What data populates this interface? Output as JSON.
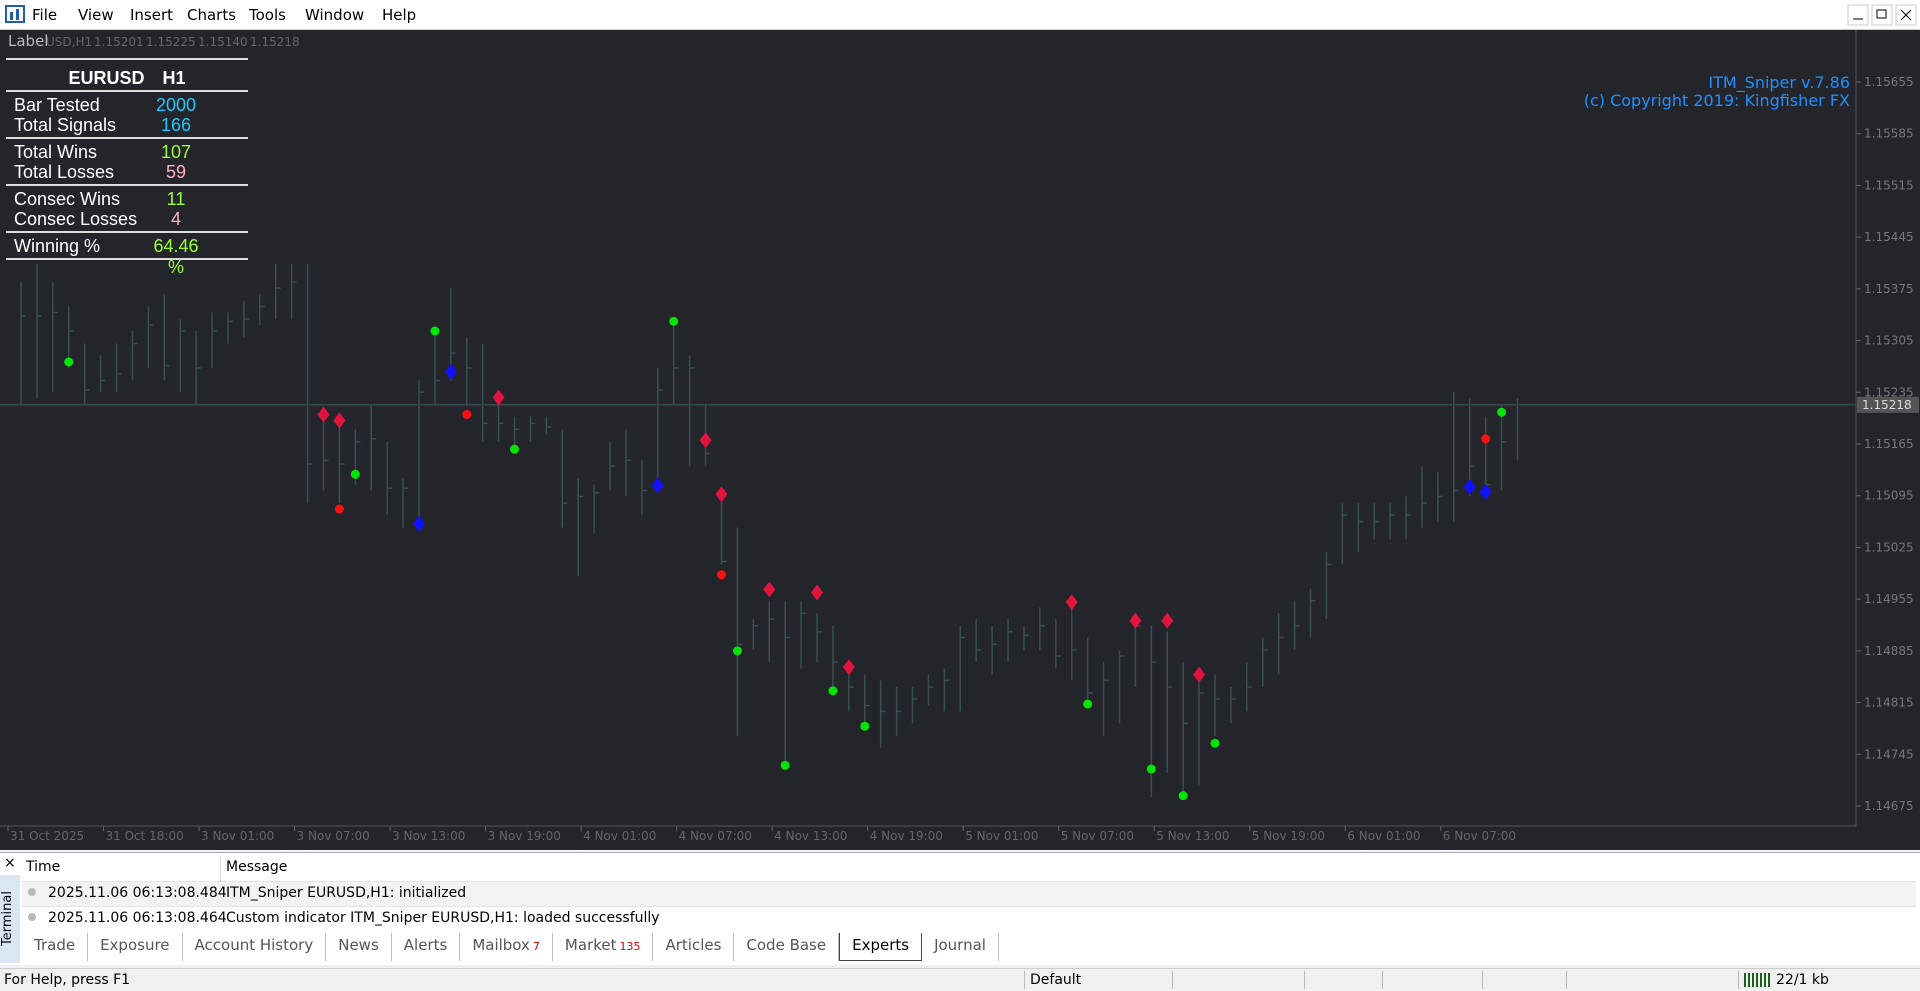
{
  "menu": [
    "File",
    "View",
    "Insert",
    "Charts",
    "Tools",
    "Window",
    "Help"
  ],
  "ohlc_header": {
    "label": "Label",
    "symbol": "USD,H1",
    "values": [
      1.15201,
      1.15225,
      {
        "value": 1.1514,
        "label": "1.15140"
      },
      1.15218
    ]
  },
  "stats_panel": {
    "symbol": "EURUSD",
    "timeframe": "H1",
    "groups": [
      [
        {
          "label": "Bar Tested",
          "value": 2000,
          "color": "#1ec8ff"
        },
        {
          "label": "Total Signals",
          "value": 166,
          "color": "#1ec8ff"
        }
      ],
      [
        {
          "label": "Total Wins",
          "value": 107,
          "color": "#9aff32"
        },
        {
          "label": "Total Losses",
          "value": 59,
          "color": "#ffb0c0"
        }
      ],
      [
        {
          "label": "Consec Wins",
          "value": 11,
          "color": "#9aff32"
        },
        {
          "label": "Consec Losses",
          "value": 4,
          "color": "#ffb0c0"
        }
      ],
      [
        {
          "label": "Winning %",
          "value": 64.46,
          "value_label": "64.46 %",
          "color": "#9aff32"
        }
      ]
    ]
  },
  "indicator": {
    "name": "ITM_Sniper v.7.86",
    "copyright": "(c) Copyright 2019: Kingfisher FX",
    "color": "#1e90ff"
  },
  "price_axis": {
    "ticks": [
      1.15655,
      1.15585,
      1.15515,
      1.15445,
      1.15375,
      1.15305,
      1.15235,
      1.15165,
      1.15095,
      1.15025,
      1.14955,
      1.14885,
      1.14815,
      1.14745,
      1.14675
    ],
    "current": 1.15218
  },
  "time_axis": {
    "labels": [
      "31 Oct 2025",
      "31 Oct 18:00",
      "3 Nov 01:00",
      "3 Nov 07:00",
      "3 Nov 13:00",
      "3 Nov 19:00",
      "4 Nov 01:00",
      "4 Nov 07:00",
      "4 Nov 13:00",
      "4 Nov 19:00",
      "5 Nov 01:00",
      "5 Nov 07:00",
      "5 Nov 13:00",
      "5 Nov 19:00",
      "6 Nov 01:00",
      "6 Nov 07:00"
    ]
  },
  "bars": {
    "color": "#35504f",
    "high": [
      1.15384,
      1.15409,
      1.15384,
      1.15351,
      1.15301,
      1.15285,
      1.15301,
      1.15318,
      1.15351,
      1.15368,
      1.15334,
      1.15318,
      1.15343,
      1.15343,
      1.15359,
      1.15368,
      1.15409,
      1.15409,
      1.15409,
      1.15202,
      1.15193,
      1.15185,
      1.15218,
      1.15168,
      1.15119,
      1.15251,
      1.15318,
      1.15376,
      1.15309,
      1.15301,
      1.15235,
      1.15202,
      1.15202,
      1.15202,
      1.15185,
      1.15119,
      1.1511,
      1.15168,
      1.15185,
      1.15143,
      1.15268,
      1.15331,
      1.15285,
      1.15218,
      1.15102,
      1.15052,
      1.14928,
      1.14953,
      1.14953,
      1.14953,
      1.14936,
      1.14919,
      1.1487,
      1.14853,
      1.14845,
      1.14836,
      1.14836,
      1.14853,
      1.14861,
      1.14919,
      1.14928,
      1.14919,
      1.14928,
      1.14919,
      1.14944,
      1.14928,
      1.14944,
      1.14903,
      1.1487,
      1.14886,
      1.14928,
      1.14919,
      1.14911,
      1.1487,
      1.14853,
      1.14853,
      1.14836,
      1.1487,
      1.14903,
      1.14936,
      1.14953,
      1.14969,
      1.15019,
      1.15085,
      1.15085,
      1.15085,
      1.15085,
      1.15094,
      1.15135,
      1.15127,
      1.15235,
      1.15227,
      1.15202,
      1.15218,
      1.15227
    ],
    "low": [
      1.15218,
      1.15227,
      1.15235,
      1.15268,
      1.15218,
      1.15235,
      1.15235,
      1.15251,
      1.15268,
      1.15251,
      1.15235,
      1.15218,
      1.15268,
      1.15301,
      1.15309,
      1.15326,
      1.15334,
      1.15334,
      1.15085,
      1.15102,
      1.15085,
      1.1511,
      1.15102,
      1.15069,
      1.15052,
      1.15052,
      1.15218,
      1.15251,
      1.15218,
      1.15168,
      1.15168,
      1.15152,
      1.15168,
      1.15177,
      1.15052,
      1.14986,
      1.15044,
      1.15102,
      1.15094,
      1.15069,
      1.15102,
      1.15218,
      1.15135,
      1.15135,
      1.15002,
      1.1477,
      1.14886,
      1.1487,
      1.14728,
      1.14861,
      1.1487,
      1.14828,
      1.14803,
      1.14778,
      1.14753,
      1.1477,
      1.14787,
      1.14811,
      1.14803,
      1.14803,
      1.1487,
      1.14853,
      1.1487,
      1.14886,
      1.14886,
      1.14861,
      1.14845,
      1.1482,
      1.1477,
      1.14787,
      1.14836,
      1.14687,
      1.1472,
      1.14687,
      1.14704,
      1.1477,
      1.14787,
      1.14803,
      1.14836,
      1.14853,
      1.14886,
      1.14903,
      1.14928,
      1.15002,
      1.15019,
      1.15036,
      1.15036,
      1.15036,
      1.15052,
      1.1506,
      1.1506,
      1.15094,
      1.15102,
      1.15102,
      1.15143
    ],
    "close": [
      1.15338,
      1.15338,
      1.15343,
      1.15318,
      1.15238,
      1.15251,
      1.1526,
      1.15301,
      1.15326,
      1.15271,
      1.15318,
      1.15268,
      1.15318,
      1.15331,
      1.15334,
      1.15351,
      1.15376,
      1.15384,
      1.15138,
      1.15143,
      1.15138,
      1.15168,
      1.15172,
      1.15105,
      1.15105,
      1.15235,
      1.15251,
      1.15288,
      1.15268,
      1.15193,
      1.15193,
      1.15185,
      1.15193,
      1.15188,
      1.15085,
      1.15094,
      1.15099,
      1.15135,
      1.15143,
      1.15102,
      1.15238,
      1.15268,
      1.15268,
      1.15152,
      1.15006,
      1.14894,
      1.14919,
      1.14928,
      1.14903,
      1.14936,
      1.14911,
      1.1487,
      1.14836,
      1.14811,
      1.14803,
      1.14803,
      1.1482,
      1.14836,
      1.14845,
      1.14903,
      1.14886,
      1.14894,
      1.14911,
      1.14906,
      1.14919,
      1.14878,
      1.14886,
      1.14828,
      1.14845,
      1.14878,
      1.14919,
      1.1487,
      1.14836,
      1.14787,
      1.14828,
      1.1482,
      1.1482,
      1.14836,
      1.14886,
      1.14903,
      1.14919,
      1.14953,
      1.15002,
      1.15069,
      1.1506,
      1.1506,
      1.15069,
      1.15069,
      1.15085,
      1.15094,
      1.15102,
      1.15135,
      1.1511,
      1.15168,
      1.15218
    ]
  },
  "signals": [
    {
      "shape": "circle",
      "color": "#00e600",
      "bars": [
        3,
        21,
        26,
        31,
        41,
        45,
        48,
        51,
        53,
        67,
        71,
        73,
        75,
        93
      ],
      "prices": [
        1.15276,
        1.15124,
        1.15318,
        1.15158,
        1.15331,
        1.14885,
        1.1473,
        1.14831,
        1.14783,
        1.14813,
        1.14725,
        1.14689,
        1.1476,
        1.15208
      ]
    },
    {
      "shape": "circle",
      "color": "#ff1010",
      "bars": [
        20,
        28,
        44,
        92
      ],
      "prices": [
        1.15077,
        1.15205,
        1.14988,
        1.15172
      ]
    },
    {
      "shape": "diamond",
      "color": "#e0143c",
      "bars": [
        19,
        20,
        30,
        43,
        44,
        47,
        50,
        52,
        66,
        70,
        72,
        74
      ],
      "prices": [
        1.15205,
        1.15197,
        1.15228,
        1.1517,
        1.15097,
        1.14968,
        1.14964,
        1.14863,
        1.14951,
        1.14926,
        1.14926,
        1.14853
      ]
    },
    {
      "shape": "diamond",
      "color": "#1010ff",
      "bars": [
        25,
        27,
        40,
        91,
        92
      ],
      "prices": [
        1.15057,
        1.15263,
        1.15109,
        1.15107,
        1.151
      ]
    }
  ],
  "terminal": {
    "side_label": "Terminal",
    "columns": [
      "Time",
      "Message"
    ],
    "rows": [
      [
        "2025.11.06 06:13:08.484",
        "ITM_Sniper EURUSD,H1: initialized"
      ],
      [
        "2025.11.06 06:13:08.464",
        "Custom indicator ITM_Sniper EURUSD,H1: loaded successfully"
      ]
    ],
    "tabs": [
      {
        "label": "Trade"
      },
      {
        "label": "Exposure"
      },
      {
        "label": "Account History"
      },
      {
        "label": "News"
      },
      {
        "label": "Alerts"
      },
      {
        "label": "Mailbox",
        "badge": 7
      },
      {
        "label": "Market",
        "badge": 135
      },
      {
        "label": "Articles"
      },
      {
        "label": "Code Base"
      },
      {
        "label": "Experts",
        "active": true
      },
      {
        "label": "Journal"
      }
    ]
  },
  "status_bar": [
    "For Help, press F1",
    "Default",
    "22/1 kb"
  ]
}
